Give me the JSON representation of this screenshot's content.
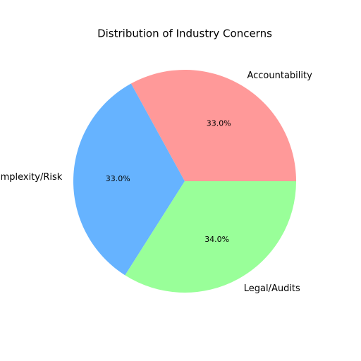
{
  "chart_data": {
    "type": "pie",
    "title": "Distribution of Industry Concerns",
    "categories": [
      "Accountability",
      "Complexity/Risk",
      "Legal/Audits"
    ],
    "values": [
      33,
      33,
      34
    ],
    "value_labels": [
      "33.0%",
      "33.0%",
      "34.0%"
    ],
    "colors": [
      "#ff9999",
      "#66b3ff",
      "#99ff99"
    ]
  }
}
